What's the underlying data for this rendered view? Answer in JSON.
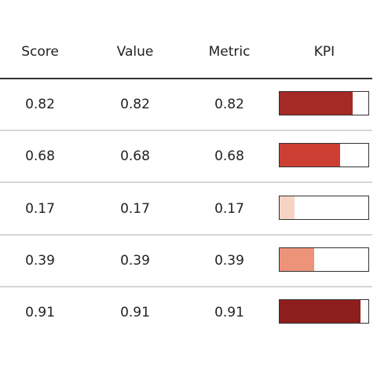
{
  "header": {
    "score_label": "Score",
    "value_label": "Value",
    "metric_label": "Metric",
    "kpi_label": "KPI"
  },
  "rows": [
    {
      "score": "0.82",
      "value": "0.82",
      "metric": "0.82",
      "kpi": 0.82,
      "color": "#a52a25"
    },
    {
      "score": "0.68",
      "value": "0.68",
      "metric": "0.68",
      "kpi": 0.68,
      "color": "#cc3f32"
    },
    {
      "score": "0.17",
      "value": "0.17",
      "metric": "0.17",
      "kpi": 0.17,
      "color": "#f7d3c3"
    },
    {
      "score": "0.39",
      "value": "0.39",
      "metric": "0.39",
      "kpi": 0.39,
      "color": "#ed937a"
    },
    {
      "score": "0.91",
      "value": "0.91",
      "metric": "0.91",
      "kpi": 0.91,
      "color": "#8e1e1e"
    }
  ],
  "chart_data": {
    "type": "table",
    "columns": [
      "Score",
      "Value",
      "Metric",
      "KPI"
    ],
    "rows": [
      {
        "Score": 0.82,
        "Value": 0.82,
        "Metric": 0.82,
        "KPI": 0.82
      },
      {
        "Score": 0.68,
        "Value": 0.68,
        "Metric": 0.68,
        "KPI": 0.68
      },
      {
        "Score": 0.17,
        "Value": 0.17,
        "Metric": 0.17,
        "KPI": 0.17
      },
      {
        "Score": 0.39,
        "Value": 0.39,
        "Metric": 0.39,
        "KPI": 0.39
      },
      {
        "Score": 0.91,
        "Value": 0.91,
        "Metric": 0.91,
        "KPI": 0.91
      }
    ],
    "kpi_display": "bar",
    "kpi_range": [
      0,
      1
    ],
    "color_scale": "reds"
  }
}
